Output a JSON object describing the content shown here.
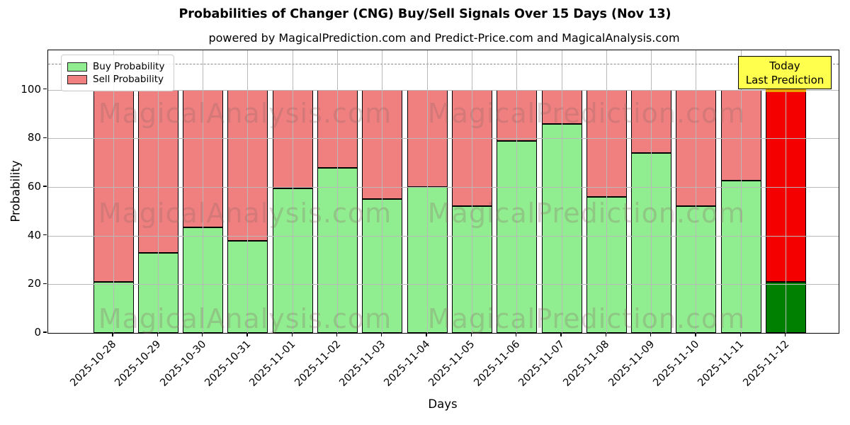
{
  "title": "Probabilities of Changer (CNG) Buy/Sell Signals Over 15 Days (Nov 13)",
  "subtitle": "powered by MagicalPrediction.com and Predict-Price.com and MagicalAnalysis.com",
  "watermark": {
    "left": "MagicalAnalysis.com",
    "right": "MagicalPrediction.com"
  },
  "legend": {
    "items": [
      {
        "label": "Buy Probability",
        "color": "#90EE90"
      },
      {
        "label": "Sell Probability",
        "color": "#F08080"
      }
    ]
  },
  "annotation": {
    "line1": "Today",
    "line2": "Last Prediction",
    "bg_color": "#ffff4d"
  },
  "axes": {
    "xlabel": "Days",
    "ylabel": "Probability",
    "yticks": [
      0,
      20,
      40,
      60,
      80,
      100
    ],
    "ymax": 116.2,
    "dashed_line_y": 110.8,
    "grid": true
  },
  "chart_data": {
    "type": "bar",
    "stacked": true,
    "title": "Probabilities of Changer (CNG) Buy/Sell Signals Over 15 Days (Nov 13)",
    "xlabel": "Days",
    "ylabel": "Probability",
    "ylim": [
      0,
      116
    ],
    "legend_position": "upper left",
    "categories": [
      "2025-10-28",
      "2025-10-29",
      "2025-10-30",
      "2025-10-31",
      "2025-11-01",
      "2025-11-02",
      "2025-11-03",
      "2025-11-04",
      "2025-11-05",
      "2025-11-06",
      "2025-11-07",
      "2025-11-08",
      "2025-11-09",
      "2025-11-10",
      "2025-11-11",
      "2025-11-12"
    ],
    "series": [
      {
        "name": "Buy Probability",
        "color": "#90EE90",
        "values": [
          21,
          33,
          43.5,
          38,
          59.5,
          68,
          55,
          60,
          52,
          79,
          86,
          56,
          74,
          52,
          62.5,
          21
        ]
      },
      {
        "name": "Sell Probability",
        "color": "#F08080",
        "values": [
          79,
          67,
          56.5,
          62,
          40.5,
          32,
          45,
          40,
          48,
          21,
          14,
          44,
          26,
          48,
          37.5,
          79
        ]
      }
    ],
    "last_bar_highlight": {
      "buy_color": "#008000",
      "sell_color": "#f40000",
      "top_edge_color": "#e8a200"
    }
  }
}
